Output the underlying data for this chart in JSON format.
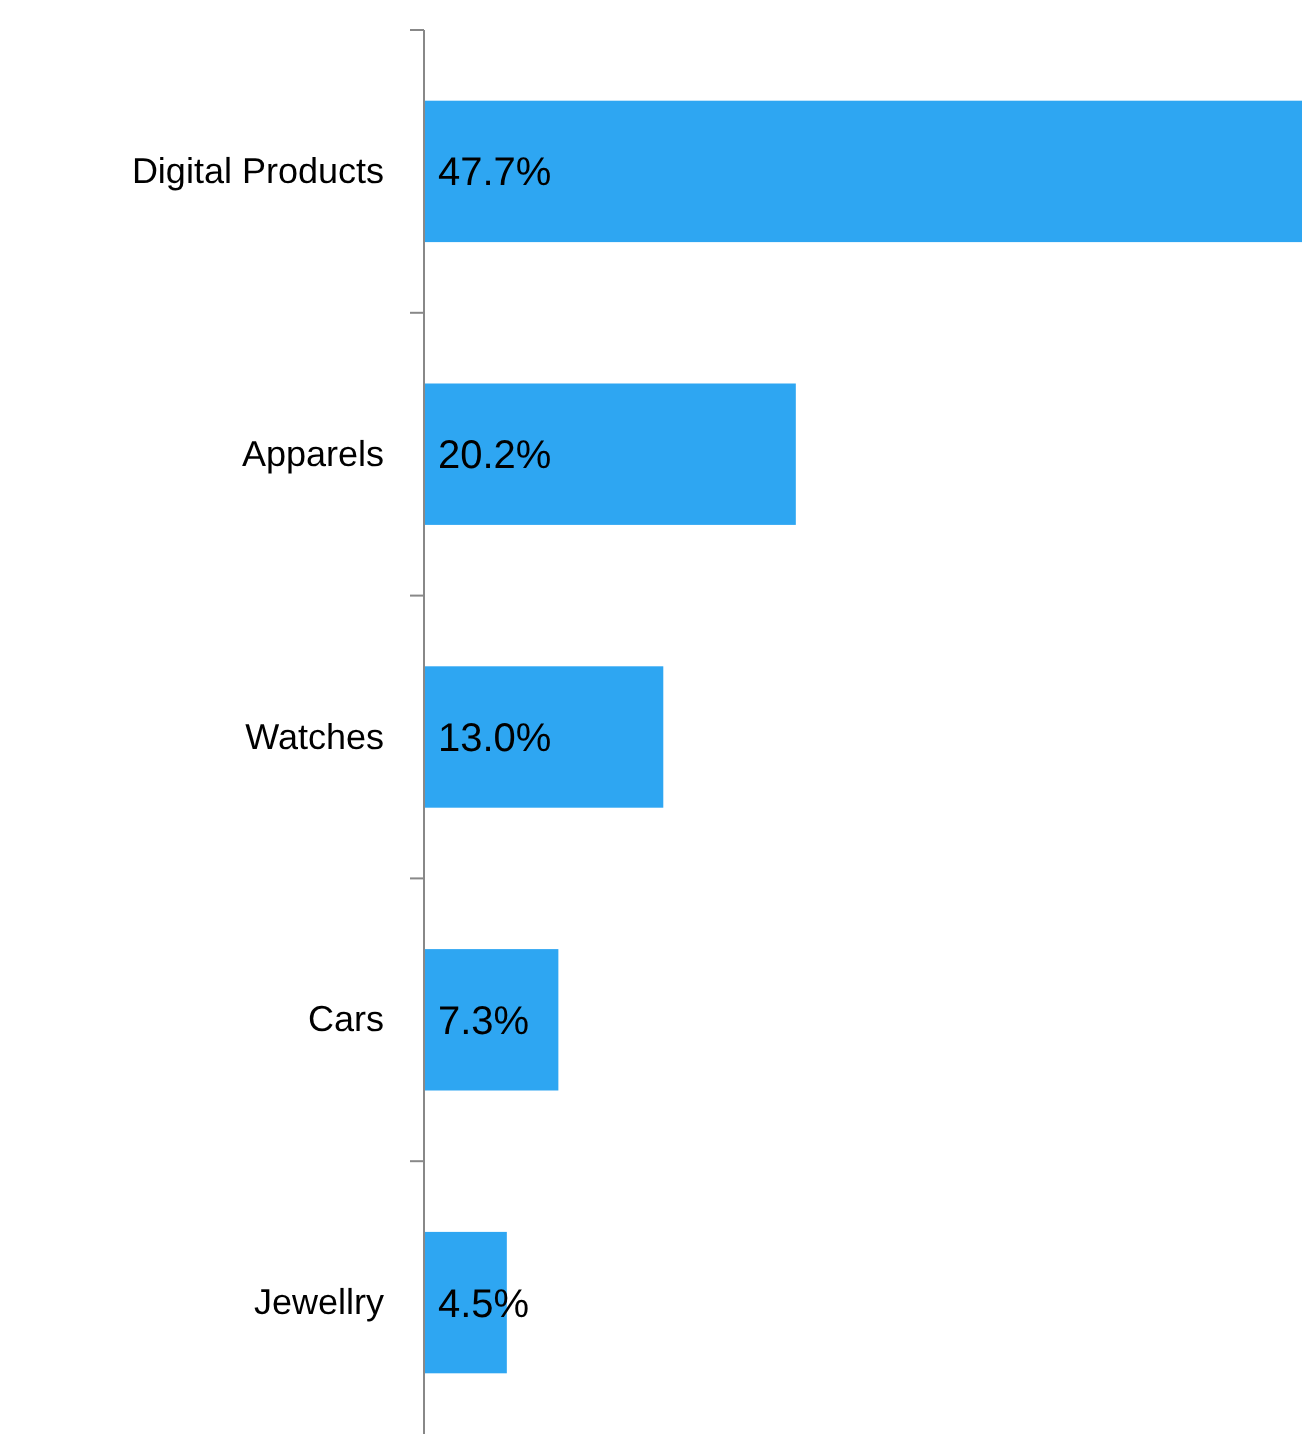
{
  "chart_data": {
    "type": "bar",
    "orientation": "horizontal",
    "categories": [
      "Digital Products",
      "Apparels",
      "Watches",
      "Cars",
      "Jewellry"
    ],
    "values": [
      47.7,
      20.2,
      13.0,
      7.3,
      4.5
    ],
    "value_labels": [
      "47.7%",
      "20.2%",
      "13.0%",
      "7.3%",
      "4.5%"
    ],
    "color": "#2ea6f2"
  }
}
